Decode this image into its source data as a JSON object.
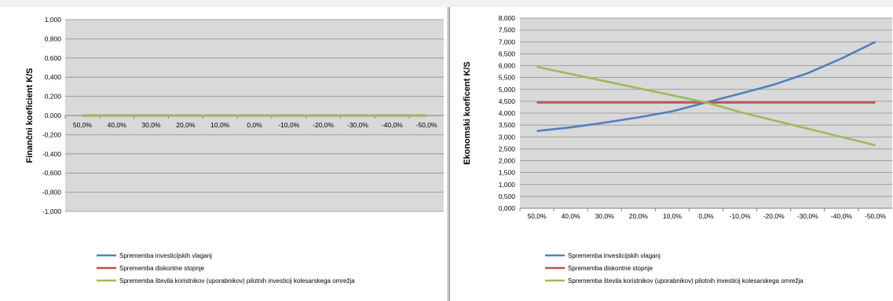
{
  "charts": [
    {
      "type": "line",
      "ylabel": "Finančni koeficient K/S",
      "ylim": [
        -1.0,
        1.0
      ],
      "ytick_labels": [
        "1,000",
        "0,800",
        "0,600",
        "0,400",
        "0,200",
        "0,000",
        "-0,200",
        "-0,400",
        "-0,600",
        "-0,800",
        "-1,000"
      ],
      "categories": [
        "50,0%",
        "40,0%",
        "30,0%",
        "20,0%",
        "10,0%",
        "0,0%",
        "-10,0%",
        "-20,0%",
        "-30,0%",
        "-40,0%",
        "-50,0%"
      ],
      "grid": true,
      "legend_position": "bottom",
      "series": [
        {
          "name": "Sprememba investicijskih vlaganj",
          "color": "#4f81bd",
          "values": [
            0,
            0,
            0,
            0,
            0,
            0,
            0,
            0,
            0,
            0,
            0
          ]
        },
        {
          "name": "Sprememba diskontne stopnje",
          "color": "#c0504d",
          "values": [
            0,
            0,
            0,
            0,
            0,
            0,
            0,
            0,
            0,
            0,
            0
          ]
        },
        {
          "name": "Sprememba števila koristnikov (uporabnikov) pilotnih investicij kolesarskega omrežja",
          "color": "#9bbb59",
          "values": [
            0,
            0,
            0,
            0,
            0,
            0,
            0,
            0,
            0,
            0,
            0
          ]
        }
      ]
    },
    {
      "type": "line",
      "ylabel": "Ekonomski koeficent K/S",
      "ylim": [
        0,
        8.0
      ],
      "ytick_labels": [
        "8,000",
        "7,500",
        "7,000",
        "6,500",
        "6,000",
        "5,500",
        "5,000",
        "4,500",
        "4,000",
        "3,500",
        "3,000",
        "2,500",
        "2,000",
        "1,500",
        "1,000",
        "0,500",
        "0,000"
      ],
      "categories": [
        "50,0%",
        "40,0%",
        "30,0%",
        "20,0%",
        "10,0%",
        "0,0%",
        "-10,0%",
        "-20,0%",
        "-30,0%",
        "-40,0%",
        "-50,0%"
      ],
      "grid": true,
      "legend_position": "bottom",
      "series": [
        {
          "name": "Sprememba investicijskih vlaganj",
          "color": "#4f81bd",
          "values": [
            3.25,
            3.4,
            3.6,
            3.82,
            4.08,
            4.45,
            4.82,
            5.2,
            5.68,
            6.3,
            7.0
          ]
        },
        {
          "name": "Sprememba diskontne stopnje",
          "color": "#c0504d",
          "values": [
            4.45,
            4.45,
            4.45,
            4.45,
            4.45,
            4.45,
            4.45,
            4.45,
            4.45,
            4.45,
            4.45
          ]
        },
        {
          "name": "Sprememba števila koristnikov (uporabnikov) pilotnih investicij kolesarskega omrežja",
          "color": "#9bbb59",
          "values": [
            5.95,
            5.65,
            5.35,
            5.05,
            4.75,
            4.45,
            4.05,
            3.7,
            3.35,
            3.0,
            2.65
          ]
        }
      ]
    }
  ]
}
